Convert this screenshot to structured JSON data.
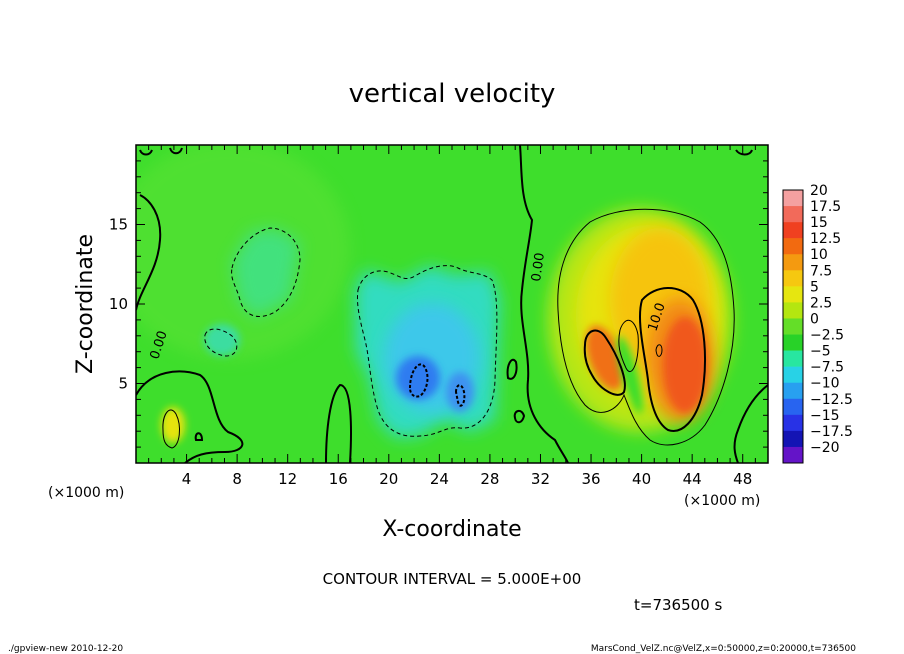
{
  "chart_data": {
    "type": "heatmap",
    "title": "vertical velocity",
    "xlabel": "X-coordinate",
    "ylabel": "Z-coordinate",
    "x_unit_left": "(×1000 m)",
    "x_unit_right": "(×1000 m)",
    "xlim": [
      0,
      50
    ],
    "ylim": [
      0,
      20
    ],
    "x_ticks": [
      "4",
      "8",
      "12",
      "16",
      "20",
      "24",
      "28",
      "32",
      "36",
      "40",
      "44",
      "48"
    ],
    "y_ticks": [
      "5",
      "10",
      "15"
    ],
    "contour_interval_text": "CONTOUR INTERVAL = 5.000E+00",
    "time_text": "t=736500 s",
    "contour_labels": [
      "0.00",
      "0.00",
      "10.0"
    ],
    "colorbar": {
      "labels": [
        "20",
        "17.5",
        "15",
        "12.5",
        "10",
        "7.5",
        "5",
        "2.5",
        "0",
        "−2.5",
        "−5",
        "−7.5",
        "−10",
        "−12.5",
        "−15",
        "−17.5",
        "−20"
      ],
      "colors": [
        "#f4a0a0",
        "#f26a5a",
        "#f04020",
        "#f26a10",
        "#f49a10",
        "#f6c810",
        "#e6e610",
        "#b4e610",
        "#64de28",
        "#28d228",
        "#28e6a0",
        "#28d2e6",
        "#28a0f0",
        "#2864f0",
        "#2832e6",
        "#1414b4",
        "#6414c8"
      ]
    }
  },
  "footer": {
    "left": "./gpview-new  2010-12-20",
    "right": "MarsCond_VelZ.nc@VelZ,x=0:50000,z=0:20000,t=736500"
  }
}
